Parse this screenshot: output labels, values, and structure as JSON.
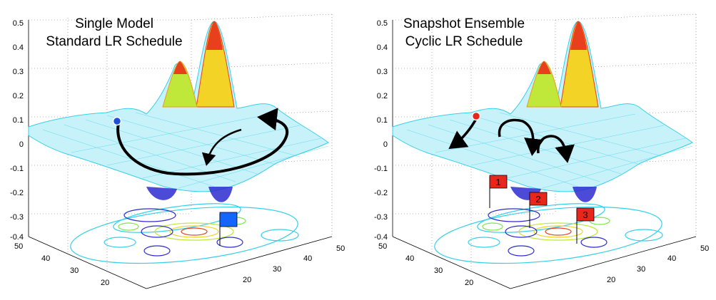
{
  "panels": [
    {
      "title_line1": "Single Model",
      "title_line2": "Standard LR Schedule",
      "z_ticks": [
        "0.5",
        "0.4",
        "0.3",
        "0.2",
        "0.1",
        "0",
        "-0.1",
        "-0.2",
        "-0.3",
        "-0.4"
      ],
      "left_axis_ticks": [
        "50",
        "40",
        "30",
        "20"
      ],
      "right_axis_ticks": [
        "50",
        "40",
        "30",
        "20"
      ],
      "start_marker_color": "#1f4fd8",
      "flag_color": "#1565ff",
      "flags": []
    },
    {
      "title_line1": "Snapshot Ensemble",
      "title_line2": "Cyclic LR Schedule",
      "z_ticks": [
        "0.5",
        "0.4",
        "0.3",
        "0.2",
        "0.1",
        "0",
        "-0.1",
        "-0.2",
        "-0.3",
        "-0.4"
      ],
      "left_axis_ticks": [
        "50",
        "40",
        "30",
        "20"
      ],
      "right_axis_ticks": [
        "50",
        "40",
        "30",
        "20"
      ],
      "start_marker_color": "#e8261c",
      "flag_color": "#e8261c",
      "flags": [
        "1",
        "2",
        "3"
      ]
    }
  ],
  "colors": {
    "mesh_low": "#2b2bd0",
    "mesh_mid": "#35d0e8",
    "mesh_high": "#d42020",
    "trajectory": "#000000"
  }
}
